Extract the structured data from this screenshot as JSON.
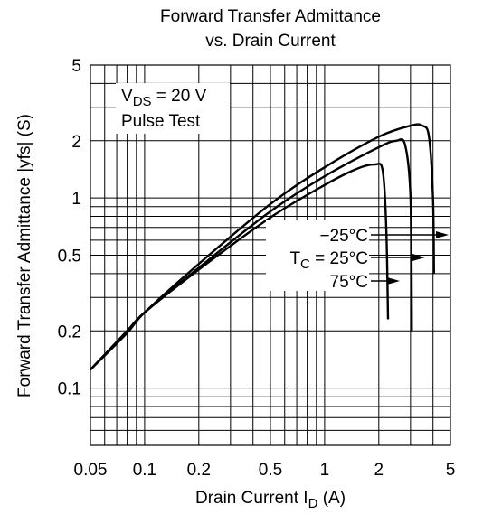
{
  "chart_data": {
    "type": "line",
    "title": [
      "Forward Transfer Admittance",
      "vs. Drain Current"
    ],
    "xlabel": {
      "main": "Drain Current  I",
      "sub": "D",
      "unit": "(A)"
    },
    "ylabel": {
      "main": "Forward Transfer Admittance  |yfs|  (S)"
    },
    "x_scale": "log",
    "y_scale": "log",
    "xlim": [
      0.05,
      5
    ],
    "ylim": [
      0.05,
      5
    ],
    "x_ticks": [
      {
        "v": 0.05,
        "label": "0.05"
      },
      {
        "v": 0.1,
        "label": "0.1"
      },
      {
        "v": 0.2,
        "label": "0.2"
      },
      {
        "v": 0.5,
        "label": "0.5"
      },
      {
        "v": 1,
        "label": "1"
      },
      {
        "v": 2,
        "label": "2"
      },
      {
        "v": 5,
        "label": "5"
      }
    ],
    "y_ticks": [
      {
        "v": 5,
        "label": "5"
      },
      {
        "v": 2,
        "label": "2"
      },
      {
        "v": 1,
        "label": "1"
      },
      {
        "v": 0.5,
        "label": "0.5"
      },
      {
        "v": 0.2,
        "label": "0.2"
      },
      {
        "v": 0.1,
        "label": "0.1"
      }
    ],
    "grid": true,
    "conditions": {
      "vds_main": "V",
      "vds_sub": "DS",
      "vds_value": " = 20 V",
      "pulse": "Pulse Test"
    },
    "tc_label": {
      "main": "T",
      "sub": "C",
      "rest": " = "
    },
    "series": [
      {
        "name": "−25°C",
        "x": [
          0.05,
          0.08,
          0.1,
          0.2,
          0.5,
          1.0,
          2.0,
          3.0,
          3.5,
          3.8,
          4.0,
          4.05
        ],
        "y": [
          0.125,
          0.195,
          0.25,
          0.45,
          0.93,
          1.45,
          2.1,
          2.4,
          2.4,
          2.1,
          1.0,
          0.4
        ]
      },
      {
        "name": "25°C",
        "x": [
          0.05,
          0.08,
          0.1,
          0.2,
          0.5,
          1.0,
          2.0,
          2.5,
          2.8,
          3.0,
          3.05
        ],
        "y": [
          0.125,
          0.2,
          0.25,
          0.43,
          0.85,
          1.3,
          1.85,
          2.0,
          1.9,
          1.0,
          0.2
        ]
      },
      {
        "name": "75°C",
        "x": [
          0.05,
          0.08,
          0.1,
          0.2,
          0.5,
          1.0,
          1.5,
          1.9,
          2.1,
          2.2,
          2.25
        ],
        "y": [
          0.125,
          0.2,
          0.25,
          0.42,
          0.79,
          1.17,
          1.42,
          1.5,
          1.4,
          0.7,
          0.23
        ]
      }
    ]
  }
}
